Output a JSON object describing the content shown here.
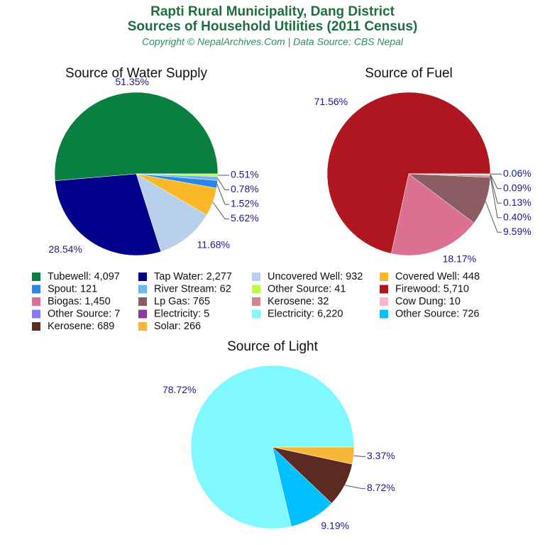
{
  "header": {
    "title_lines": [
      "Rapti Rural Municipality, Dang District",
      "Sources of Household Utilities (2011 Census)"
    ],
    "subtitle": "Copyright © NepalArchives.Com | Data Source: CBS Nepal"
  },
  "chart_data": [
    {
      "type": "pie",
      "title": "Source of Water Supply",
      "values": [
        4097,
        2277,
        932,
        448,
        121,
        62,
        41
      ],
      "legend_labels": [
        "Tubewell: 4,097",
        "Tap Water: 2,277",
        "Uncovered Well: 932",
        "Covered Well: 448",
        "Spout: 121",
        "River Stream: 62",
        "Other Source: 41"
      ],
      "percent_labels": [
        "51.35%",
        "28.54%",
        "11.68%",
        "5.62%",
        "1.52%",
        "0.78%",
        "0.51%"
      ],
      "colors": [
        "#0a8040",
        "#00008b",
        "#b8d0ec",
        "#fbb829",
        "#2b85e6",
        "#6cb8f5",
        "#bbff44"
      ]
    },
    {
      "type": "pie",
      "title": "Source of Fuel",
      "values": [
        5710,
        1450,
        765,
        32,
        10,
        7,
        5
      ],
      "legend_labels": [
        "Firewood: 5,710",
        "Biogas: 1,450",
        "Lp Gas: 765",
        "Kerosene: 32",
        "Cow Dung: 10",
        "Other Source: 7",
        "Electricity: 5"
      ],
      "percent_labels": [
        "71.56%",
        "18.17%",
        "9.59%",
        "0.40%",
        "0.13%",
        "0.09%",
        "0.06%"
      ],
      "colors": [
        "#b0161f",
        "#dc7090",
        "#8c5c64",
        "#d08890",
        "#fcb8c8",
        "#8877ff",
        "#8b3a9a"
      ]
    },
    {
      "type": "pie",
      "title": "Source of Light",
      "values": [
        6220,
        726,
        689,
        266
      ],
      "legend_labels": [
        "Electricity: 6,220",
        "Other Source: 726",
        "Kerosene: 689",
        "Solar: 266"
      ],
      "percent_labels": [
        "78.72%",
        "9.19%",
        "8.72%",
        "3.37%"
      ],
      "colors": [
        "#7ff8ff",
        "#00c0ff",
        "#5c2a20",
        "#f6b836"
      ]
    }
  ]
}
